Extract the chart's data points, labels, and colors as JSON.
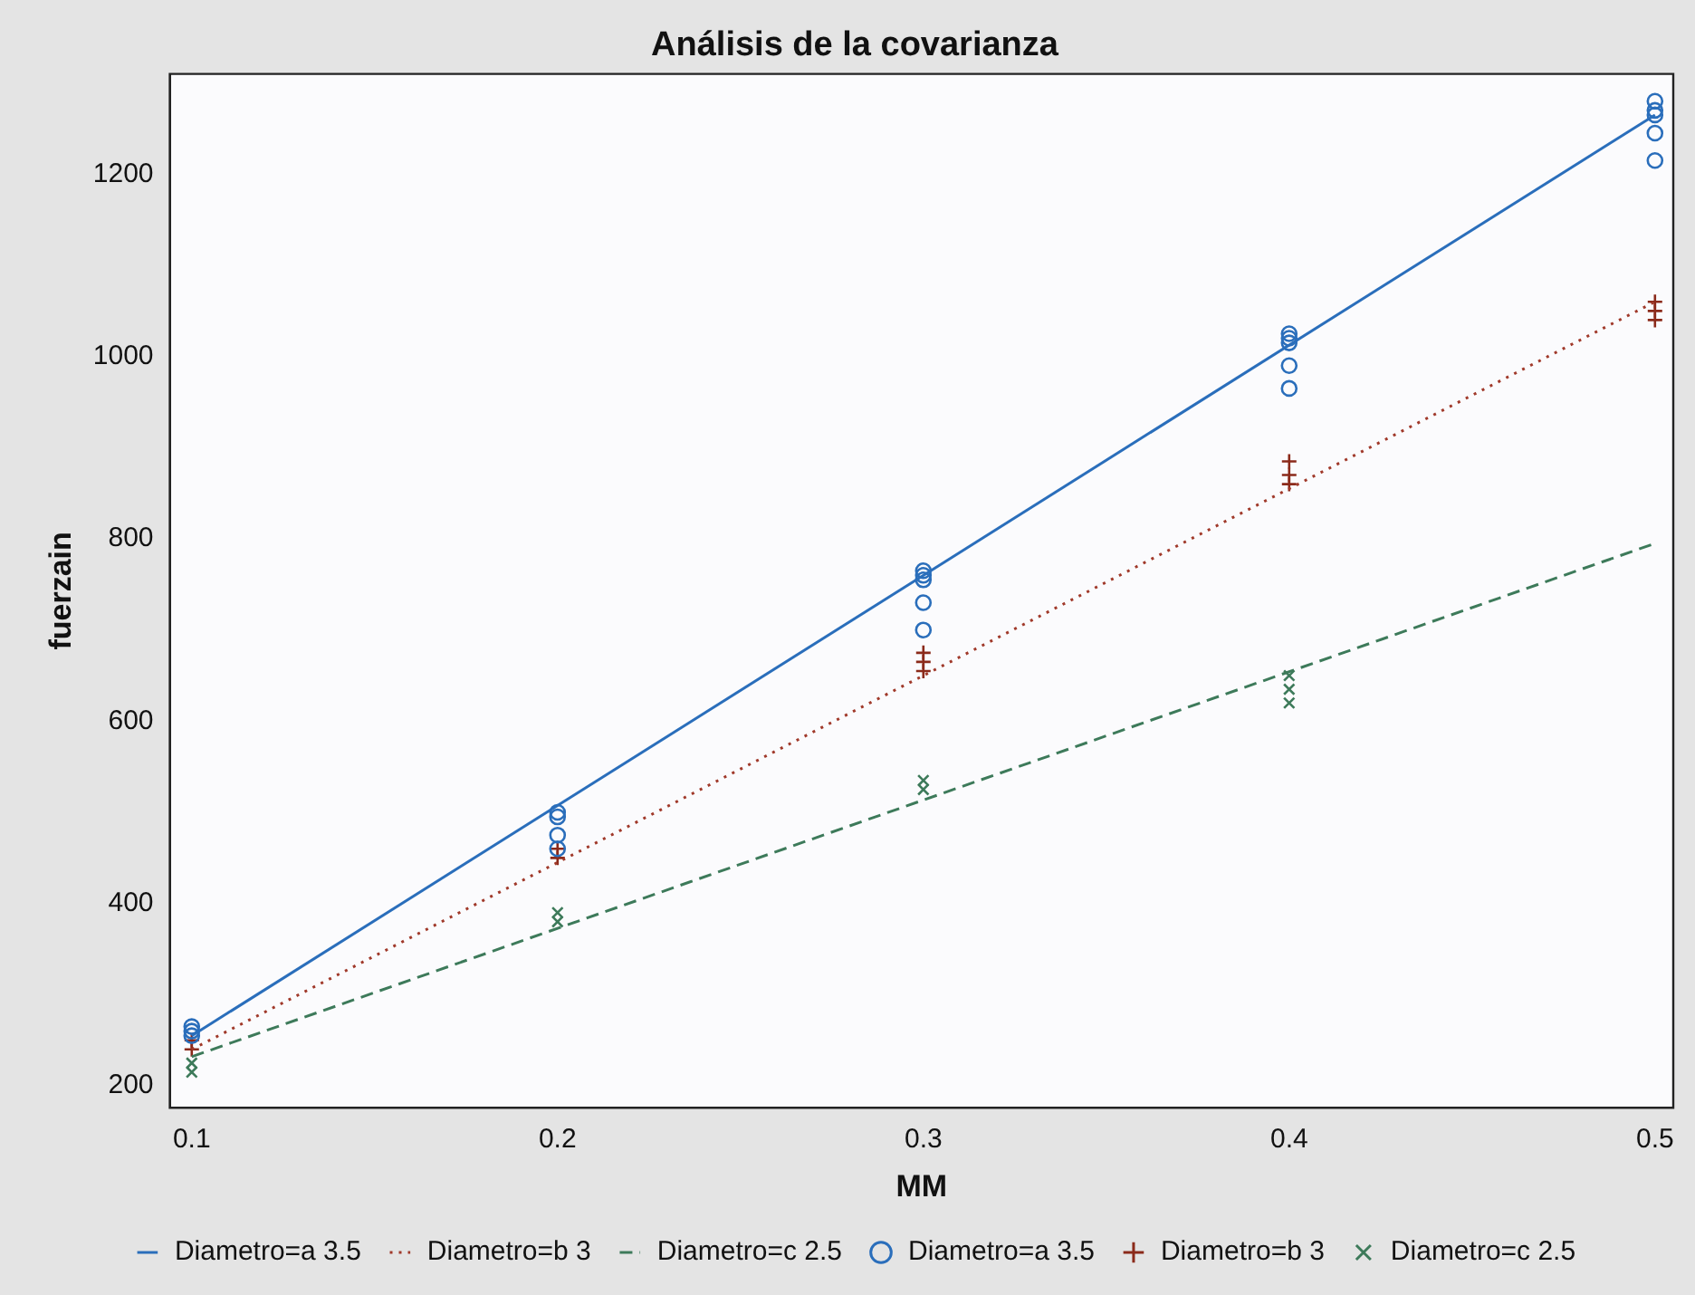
{
  "chart_data": {
    "type": "scatter",
    "title": "Análisis de la covarianza",
    "xlabel": "MM",
    "ylabel": "fuerzain",
    "xlim": [
      0.094,
      0.505
    ],
    "xticks": [
      {
        "value": 0.1,
        "label": "0.1"
      },
      {
        "value": 0.2,
        "label": "0.2"
      },
      {
        "value": 0.3,
        "label": "0.3"
      },
      {
        "value": 0.4,
        "label": "0.4"
      },
      {
        "value": 0.5,
        "label": "0.5"
      }
    ],
    "ylim": [
      176,
      1310
    ],
    "yticks": [
      200,
      400,
      600,
      800,
      1000,
      1200
    ],
    "grid": false,
    "legend": "bottom",
    "series": [
      {
        "name": "Diametro=a 3.5",
        "type": "line",
        "line_style": "solid",
        "marker": "none",
        "color": "#2a6ebb",
        "x": [
          0.1,
          0.5
        ],
        "values": [
          255,
          1265
        ]
      },
      {
        "name": "Diametro=b 3",
        "type": "line",
        "line_style": "dotted",
        "marker": "none",
        "color": "#a0392a",
        "x": [
          0.1,
          0.5
        ],
        "values": [
          240,
          1060
        ]
      },
      {
        "name": "Diametro=c 2.5",
        "type": "line",
        "line_style": "dashed",
        "marker": "none",
        "color": "#3d7a5a",
        "x": [
          0.1,
          0.5
        ],
        "values": [
          232,
          795
        ]
      },
      {
        "name": "Diametro=a 3.5",
        "type": "scatter",
        "marker": "circle",
        "color": "#2a6ebb",
        "x": [
          0.1,
          0.1,
          0.1,
          0.2,
          0.2,
          0.2,
          0.2,
          0.3,
          0.3,
          0.3,
          0.3,
          0.3,
          0.4,
          0.4,
          0.4,
          0.4,
          0.4,
          0.5,
          0.5,
          0.5,
          0.5,
          0.5
        ],
        "values": [
          265,
          260,
          255,
          500,
          495,
          475,
          460,
          765,
          760,
          755,
          730,
          700,
          1025,
          1020,
          1015,
          990,
          965,
          1280,
          1270,
          1265,
          1245,
          1215
        ]
      },
      {
        "name": "Diametro=b 3",
        "type": "scatter",
        "marker": "cross",
        "color": "#8b2a1a",
        "x": [
          0.1,
          0.1,
          0.2,
          0.2,
          0.3,
          0.3,
          0.3,
          0.4,
          0.4,
          0.4,
          0.5,
          0.5,
          0.5
        ],
        "values": [
          250,
          240,
          460,
          450,
          675,
          665,
          655,
          885,
          870,
          860,
          1060,
          1050,
          1040
        ]
      },
      {
        "name": "Diametro=c 2.5",
        "type": "scatter",
        "marker": "x",
        "color": "#3d7a5a",
        "x": [
          0.1,
          0.1,
          0.2,
          0.2,
          0.3,
          0.3,
          0.4,
          0.4,
          0.4
        ],
        "values": [
          225,
          215,
          390,
          380,
          535,
          525,
          650,
          635,
          620
        ]
      }
    ]
  }
}
